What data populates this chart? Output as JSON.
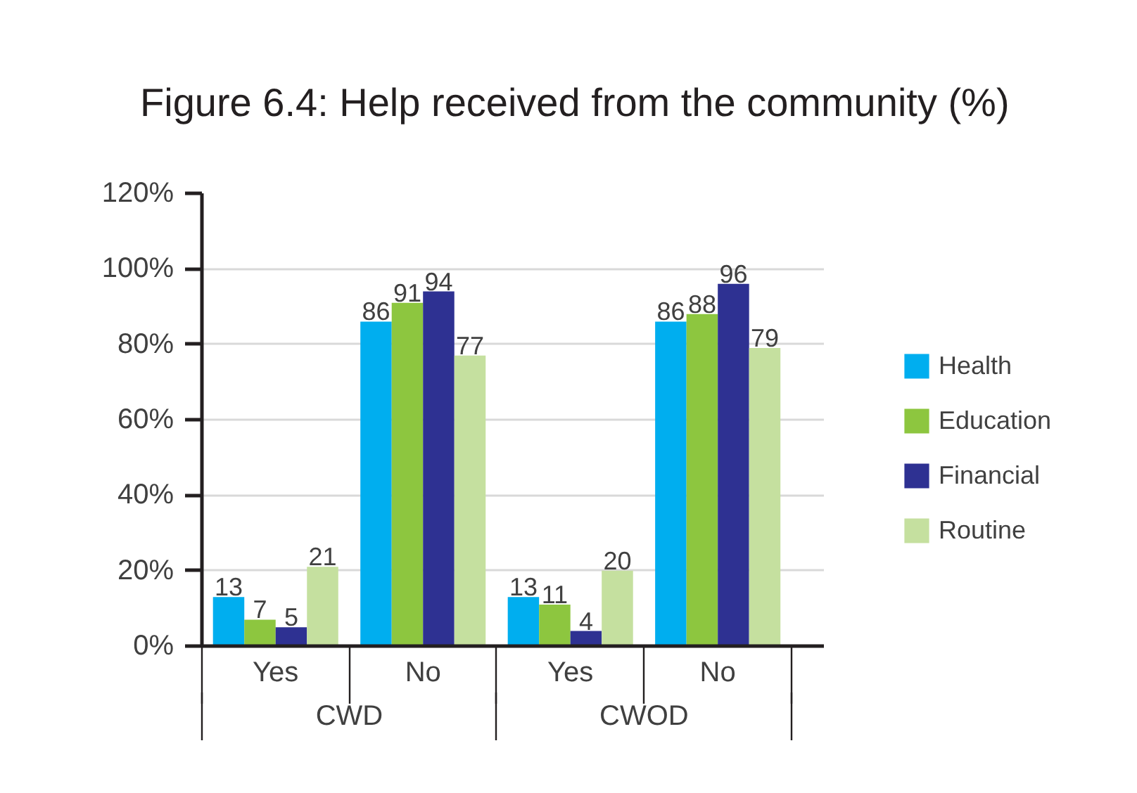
{
  "chart_data": {
    "type": "bar",
    "title": "Figure 6.4: Help received from the community (%)",
    "categories": [
      "Yes",
      "No",
      "Yes",
      "No"
    ],
    "annotations": [
      "CWD",
      "CWOD"
    ],
    "series": [
      {
        "name": "Health",
        "color": "#00aeef",
        "values": [
          13,
          86,
          13,
          86
        ]
      },
      {
        "name": "Education",
        "color": "#8dc63f",
        "values": [
          7,
          91,
          11,
          88
        ]
      },
      {
        "name": "Financial",
        "color": "#2e3192",
        "values": [
          5,
          94,
          4,
          96
        ]
      },
      {
        "name": "Routine",
        "color": "#c5e09f",
        "values": [
          21,
          77,
          20,
          79
        ]
      }
    ],
    "ylim": [
      0,
      120
    ],
    "yticks": [
      {
        "value": 0,
        "label": "0%"
      },
      {
        "value": 20,
        "label": "20%"
      },
      {
        "value": 40,
        "label": "40%"
      },
      {
        "value": 60,
        "label": "60%"
      },
      {
        "value": 80,
        "label": "80%"
      },
      {
        "value": 100,
        "label": "100%"
      },
      {
        "value": 120,
        "label": "120%"
      }
    ],
    "grid": "y",
    "legend": "right",
    "data_labels": true
  }
}
